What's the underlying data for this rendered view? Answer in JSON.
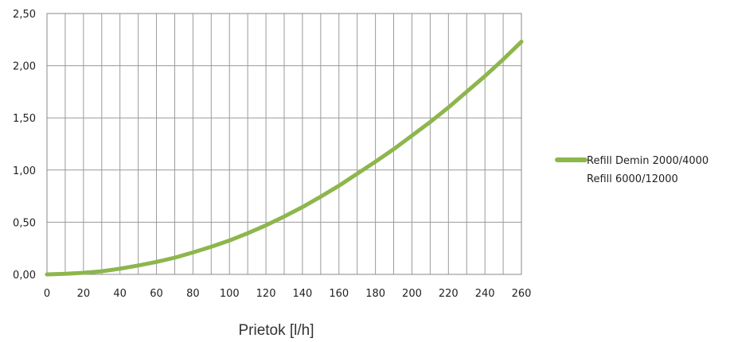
{
  "chart_data": {
    "type": "line",
    "title": "",
    "xlabel": "Prietok [l/h]",
    "ylabel": "",
    "xlim": [
      0,
      260
    ],
    "ylim": [
      0,
      2.5
    ],
    "x_ticks": [
      0,
      20,
      40,
      60,
      80,
      100,
      120,
      140,
      160,
      180,
      200,
      220,
      240,
      260
    ],
    "y_ticks": [
      0,
      0.5,
      1,
      1.5,
      2,
      2.5
    ],
    "y_tick_labels": [
      "0,00",
      "0,50",
      "1,00",
      "1,50",
      "2,00",
      "2,50"
    ],
    "grid": "vertical every 10 units, horizontal at major ticks",
    "legend_position": "right",
    "series": [
      {
        "name": "Refill Demin 2000/4000 Refill 6000/12000",
        "legend_lines": [
          "Refill Demin 2000/4000",
          "Refill 6000/12000"
        ],
        "color": "#8db64c",
        "x": [
          0,
          10,
          20,
          30,
          40,
          50,
          60,
          70,
          80,
          90,
          100,
          110,
          120,
          130,
          140,
          150,
          160,
          170,
          180,
          190,
          200,
          210,
          220,
          230,
          240,
          250,
          260
        ],
        "y": [
          0,
          0.005,
          0.015,
          0.03,
          0.055,
          0.085,
          0.12,
          0.16,
          0.21,
          0.265,
          0.325,
          0.395,
          0.47,
          0.555,
          0.645,
          0.745,
          0.85,
          0.965,
          1.08,
          1.2,
          1.33,
          1.46,
          1.6,
          1.75,
          1.9,
          2.06,
          2.23
        ]
      }
    ]
  }
}
